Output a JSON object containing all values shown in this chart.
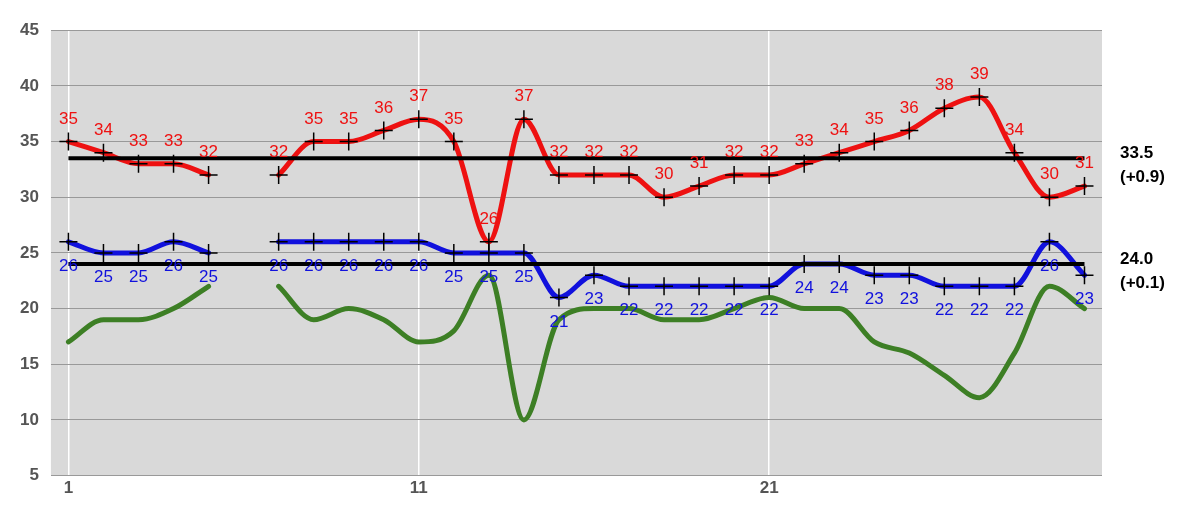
{
  "chart_data": {
    "type": "line",
    "x": [
      1,
      2,
      3,
      4,
      5,
      6,
      7,
      8,
      9,
      10,
      11,
      12,
      13,
      14,
      15,
      16,
      17,
      18,
      19,
      20,
      21,
      22,
      23,
      24,
      25,
      26,
      27,
      28,
      29,
      30
    ],
    "xlim": [
      0.5,
      30.5
    ],
    "xticks": [
      1,
      11,
      21
    ],
    "ylim": [
      5,
      45
    ],
    "yticks": [
      5,
      10,
      15,
      20,
      25,
      30,
      35,
      40,
      45
    ],
    "grid": true,
    "line_style": "solid",
    "series": [
      {
        "color": "#ee1111",
        "marker": "cross",
        "values": [
          35,
          34,
          33,
          33,
          32,
          null,
          32,
          35,
          35,
          36,
          37,
          35,
          26,
          37,
          32,
          32,
          32,
          30,
          31,
          32,
          32,
          33,
          34,
          35,
          36,
          38,
          39,
          34,
          30,
          31
        ],
        "value_labels": [
          "35",
          "34",
          "33",
          "33",
          "32",
          null,
          "32",
          "35",
          "35",
          "36",
          "37",
          "35",
          "26",
          "37",
          "32",
          "32",
          "32",
          "30",
          "31",
          "32",
          "32",
          "33",
          "34",
          "35",
          "36",
          "38",
          "39",
          "34",
          "30",
          "31"
        ]
      },
      {
        "color": "#1111dd",
        "marker": "cross",
        "values": [
          26,
          25,
          25,
          26,
          25,
          null,
          26,
          26,
          26,
          26,
          26,
          25,
          25,
          25,
          21,
          23,
          22,
          22,
          22,
          22,
          22,
          24,
          24,
          23,
          23,
          22,
          22,
          22,
          26,
          23
        ],
        "value_labels": [
          "26",
          "25",
          "25",
          "26",
          "25",
          null,
          "26",
          "26",
          "26",
          "26",
          "26",
          "25",
          "25",
          "25",
          "21",
          "23",
          "22",
          "22",
          "22",
          "22",
          "22",
          "24",
          "24",
          "23",
          "23",
          "22",
          "22",
          "22",
          "26",
          "23"
        ]
      },
      {
        "color": "#3d7f25",
        "marker": "none",
        "values": [
          17,
          19,
          19,
          20,
          22,
          null,
          22,
          19,
          20,
          19,
          17,
          18,
          23,
          10,
          19,
          20,
          20,
          19,
          19,
          20,
          21,
          20,
          20,
          17,
          16,
          14,
          12,
          16,
          22,
          20
        ]
      }
    ],
    "ref_lines": [
      {
        "axis": "y",
        "value": 33.5,
        "label": "33.5\n(+0.9)",
        "color": "#000000"
      },
      {
        "axis": "y",
        "value": 24.0,
        "label": "24.0\n(+0.1)",
        "color": "#000000"
      }
    ]
  }
}
